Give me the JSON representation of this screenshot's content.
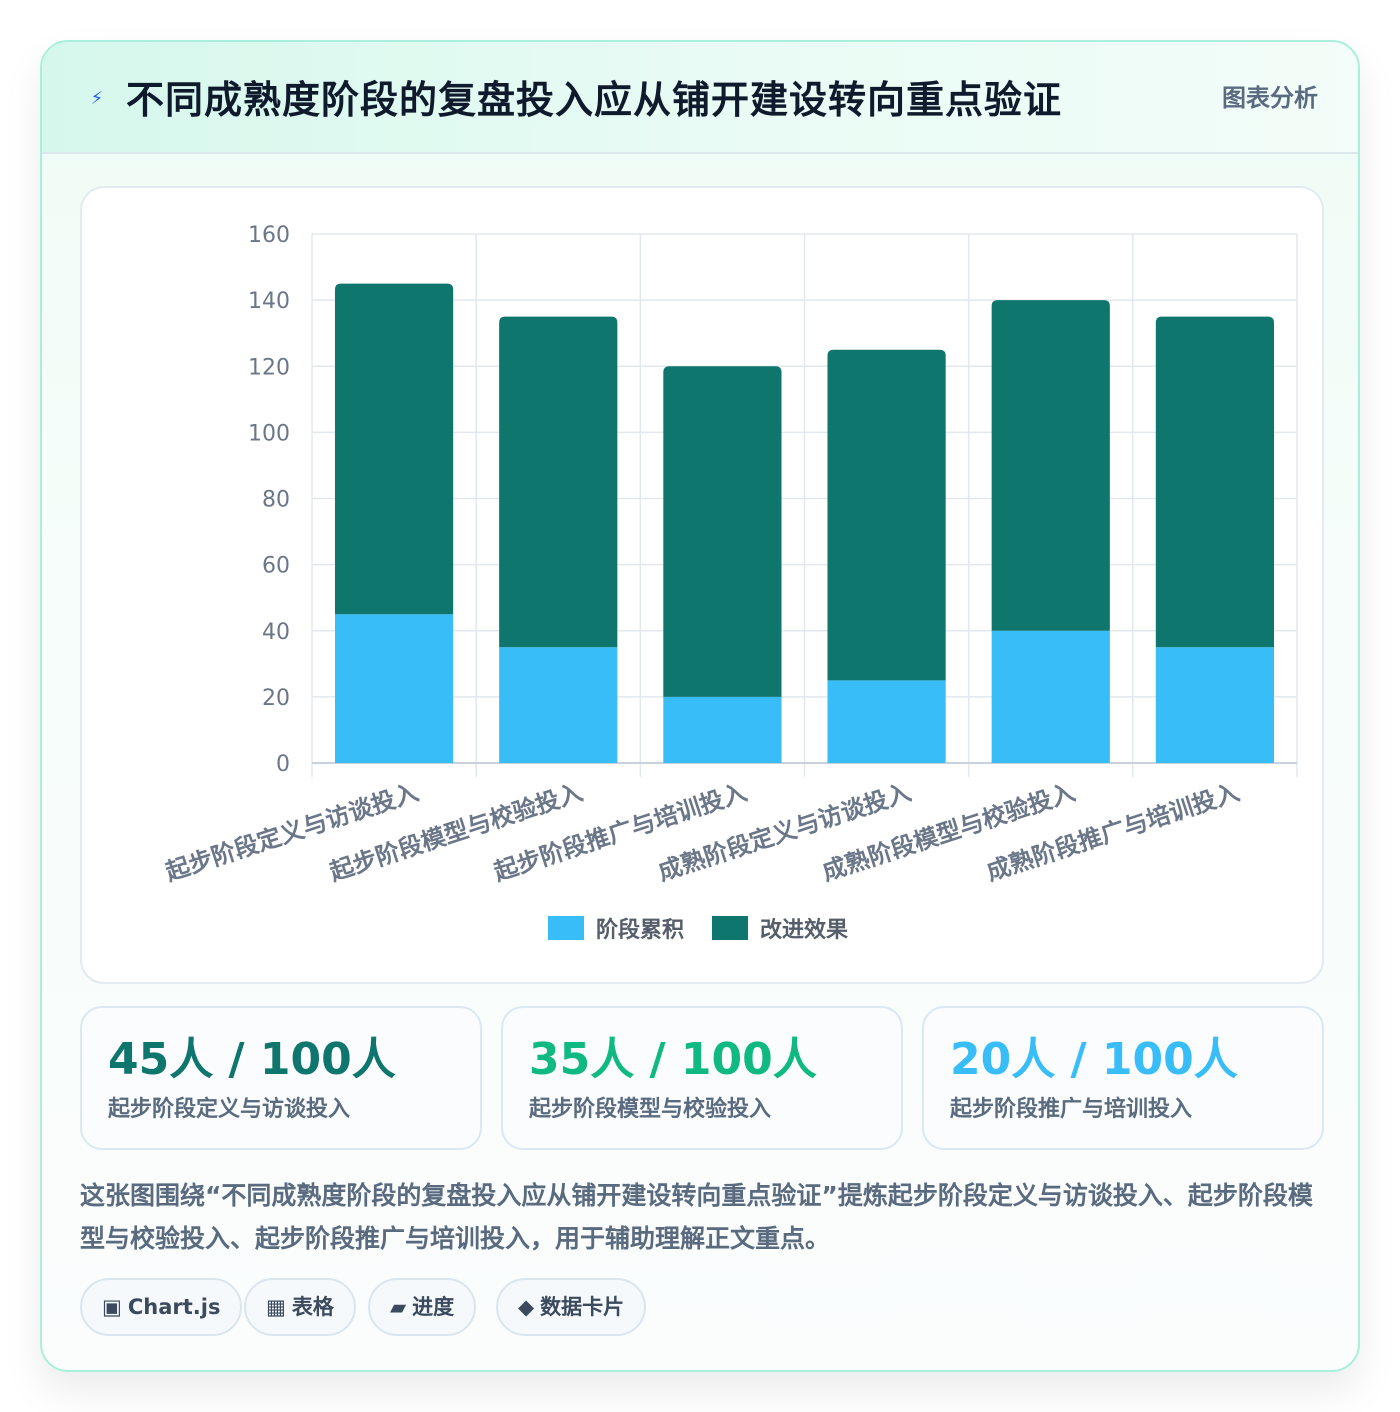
{
  "header": {
    "title": "不同成熟度阶段的复盘投入应从铺开建设转向重点验证",
    "tag": "图表分析",
    "icon": "lightning-icon"
  },
  "chart_data": {
    "type": "bar",
    "stacked": true,
    "categories": [
      "起步阶段定义与访谈投入",
      "起步阶段模型与校验投入",
      "起步阶段推广与培训投入",
      "成熟阶段定义与访谈投入",
      "成熟阶段模型与校验投入",
      "成熟阶段推广与培训投入"
    ],
    "series": [
      {
        "name": "阶段累积",
        "color": "#38bdf8",
        "values": [
          45,
          35,
          20,
          25,
          40,
          35
        ]
      },
      {
        "name": "改进效果",
        "color": "#0f766e",
        "values": [
          100,
          100,
          100,
          100,
          100,
          100
        ]
      }
    ],
    "ylim": [
      0,
      160
    ],
    "yticks": [
      0,
      20,
      40,
      60,
      80,
      100,
      120,
      140,
      160
    ],
    "grid": true,
    "legend": "bottom"
  },
  "stats": [
    {
      "value": "45人 / 100人",
      "label": "起步阶段定义与访谈投入",
      "color": "#0f766e"
    },
    {
      "value": "35人 / 100人",
      "label": "起步阶段模型与校验投入",
      "color": "#10b981"
    },
    {
      "value": "20人 / 100人",
      "label": "起步阶段推广与培训投入",
      "color": "#38bdf8"
    }
  ],
  "description": "这张图围绕“不同成熟度阶段的复盘投入应从铺开建设转向重点验证”提炼起步阶段定义与访谈投入、起步阶段模型与校验投入、起步阶段推广与培训投入，用于辅助理解正文重点。",
  "chips": [
    {
      "icon": "▣",
      "label": "Chart.js"
    },
    {
      "icon": "▦",
      "label": "表格"
    },
    {
      "icon": "▰",
      "label": "进度"
    },
    {
      "icon": "◆",
      "label": "数据卡片"
    }
  ]
}
